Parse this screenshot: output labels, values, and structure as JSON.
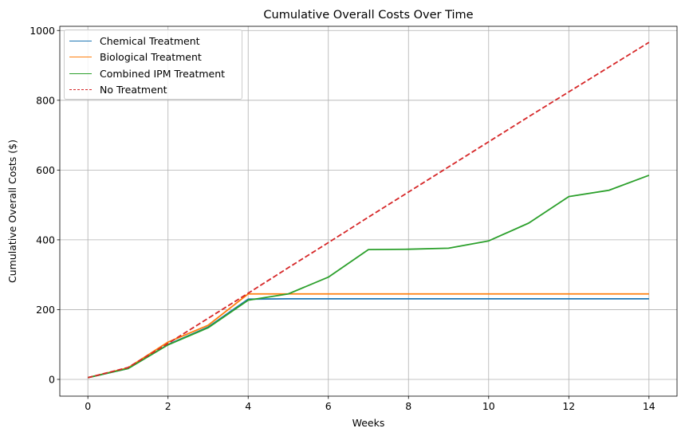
{
  "chart_data": {
    "type": "line",
    "title": "Cumulative Overall Costs Over Time",
    "xlabel": "Weeks",
    "ylabel": "Cumulative Overall Costs ($)",
    "xlim": [
      -0.7,
      14.7
    ],
    "ylim": [
      -48,
      1012
    ],
    "xticks": [
      0,
      2,
      4,
      6,
      8,
      10,
      12,
      14
    ],
    "yticks": [
      0,
      200,
      400,
      600,
      800,
      1000
    ],
    "grid": true,
    "legend_position": "upper-left",
    "x": [
      0,
      1,
      2,
      3,
      4,
      5,
      6,
      7,
      8,
      9,
      10,
      11,
      12,
      13,
      14
    ],
    "series": [
      {
        "name": "Chemical Treatment",
        "color": "#1f77b4",
        "dash": "solid",
        "values": [
          5,
          31,
          100,
          150,
          230,
          231,
          231,
          231,
          231,
          231,
          231,
          231,
          231,
          231,
          231
        ]
      },
      {
        "name": "Biological Treatment",
        "color": "#ff7f0e",
        "dash": "solid",
        "values": [
          5,
          33,
          107,
          155,
          245,
          245,
          245,
          245,
          245,
          245,
          245,
          245,
          245,
          245,
          245
        ]
      },
      {
        "name": "Combined IPM Treatment",
        "color": "#2ca02c",
        "dash": "solid",
        "values": [
          5,
          31,
          99,
          148,
          227,
          245,
          293,
          372,
          373,
          376,
          397,
          448,
          524,
          542,
          585
        ]
      },
      {
        "name": "No Treatment",
        "color": "#d62728",
        "dash": "dashed",
        "values": [
          5,
          34,
          103,
          175,
          247,
          320,
          392,
          465,
          537,
          609,
          681,
          753,
          824,
          895,
          966
        ]
      }
    ]
  }
}
